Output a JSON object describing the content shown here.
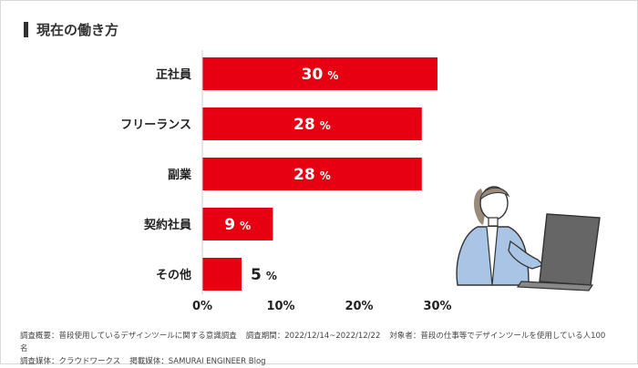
{
  "page": {
    "title": "現在の働き方"
  },
  "chart_data": {
    "type": "bar",
    "orientation": "horizontal",
    "categories": [
      "正社員",
      "フリーランス",
      "副業",
      "契約社員",
      "その他"
    ],
    "values": [
      30,
      28,
      28,
      9,
      5
    ],
    "value_labels": [
      "30",
      "28",
      "28",
      "9",
      "5"
    ],
    "value_unit": "%",
    "xticks": [
      "0%",
      "10%",
      "20%",
      "30%"
    ],
    "xlim": [
      0,
      30
    ],
    "bar_color": "#e60012",
    "grid": false
  },
  "notes": {
    "line1": "調査概要：普段使用しているデザインツールに関する意識調査",
    "period": "調査期間：2022/12/14~2022/12/22",
    "target": "対象者：普段の仕事等でデザインツールを使用している人100名",
    "medium": "調査媒体：クラウドワークス",
    "publisher": "掲載媒体：SAMURAI ENGINEER Blog"
  }
}
